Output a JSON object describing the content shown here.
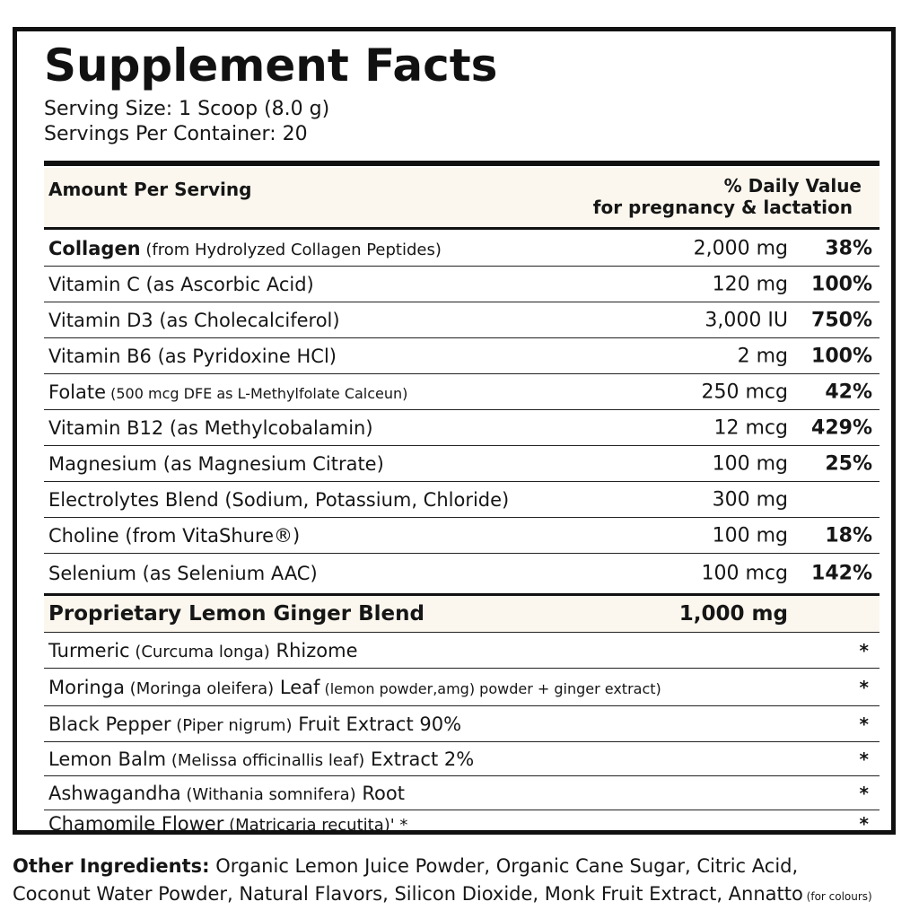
{
  "title": "Supplement Facts",
  "serving_size": "Serving Size: 1 Scoop (8.0 g)",
  "servings_per_container": "Servings Per Container: 20",
  "header": {
    "amount_per_serving": "Amount Per Serving",
    "daily_value_line1": "% Daily Value",
    "daily_value_line2": "for pregnancy & lactation"
  },
  "nutrients": [
    {
      "name": "Collagen",
      "detail": " (from Hydrolyzed Collagen Peptides)",
      "amount": "2,000 mg",
      "dv": "38%"
    },
    {
      "name": "Vitamin C",
      "detail": " (as Ascorbic Acid)",
      "amount": "120 mg",
      "dv": "100%"
    },
    {
      "name": "Vitamin D3",
      "detail": " (as Cholecalciferol)",
      "amount": "3,000 IU",
      "dv": "750%"
    },
    {
      "name": "Vitamin B6",
      "detail": " (as Pyridoxine HCl)",
      "amount": "2 mg",
      "dv": "100%"
    },
    {
      "name": "Folate",
      "detail": " (500 mcg DFE as L-Methylfolate Calceun)",
      "amount": "250 mcg",
      "dv": "42%"
    },
    {
      "name": "Vitamin B12",
      "detail": " (as Methylcobalamin)",
      "amount": "12 mcg",
      "dv": "429%"
    },
    {
      "name": "Magnesium",
      "detail": " (as Magnesium Citrate)",
      "amount": "100 mg",
      "dv": "25%"
    },
    {
      "name": "Electrolytes Blend",
      "detail": " (Sodium, Potassium, Chloride)",
      "amount": "300 mg",
      "dv": ""
    },
    {
      "name": "Choline",
      "detail": " (from VitaShure®)",
      "amount": "100 mg",
      "dv": "18%"
    },
    {
      "name": "Selenium",
      "detail": " (as Selenium AAC)",
      "amount": "100 mcg",
      "dv": "142%"
    }
  ],
  "blend": {
    "name": "Proprietary Lemon Ginger Blend",
    "amount": "1,000 mg"
  },
  "blend_items": [
    {
      "name": "Turmeric",
      "detail": " (Curcuma longa)",
      "part": " Rhizome",
      "extra": "",
      "mark": "*"
    },
    {
      "name": "Moringa",
      "detail": " (Moringa oleifera)",
      "part": " Leaf",
      "extra": " (lemon powder,amg) powder + ginger extract)",
      "mark": "*"
    },
    {
      "name": "Black Pepper",
      "detail": " (Piper nigrum)",
      "part": " Fruit Extract 90%",
      "extra": "",
      "mark": "*"
    },
    {
      "name": "Lemon Balm",
      "detail": " (Melissa officinallis leaf)",
      "part": " Extract 2%",
      "extra": "",
      "mark": "*"
    },
    {
      "name": "Ashwagandha",
      "detail": " (Withania somnifera)",
      "part": " Root",
      "extra": "",
      "mark": "*"
    },
    {
      "name": "Chamomile Flower",
      "detail": " (Matricaria recutita)' *",
      "part": "",
      "extra": "",
      "mark": "*"
    }
  ],
  "other_ingredients": {
    "label": "Other Ingredients:",
    "line1": " Organic Lemon Juice Powder, Organic Cane Sugar, Citric Acid,",
    "line2": "Coconut Water Powder, Natural Flavors, Silicon Dioxide, Monk Fruit Extract, Annatto",
    "note": " (for colours)"
  }
}
